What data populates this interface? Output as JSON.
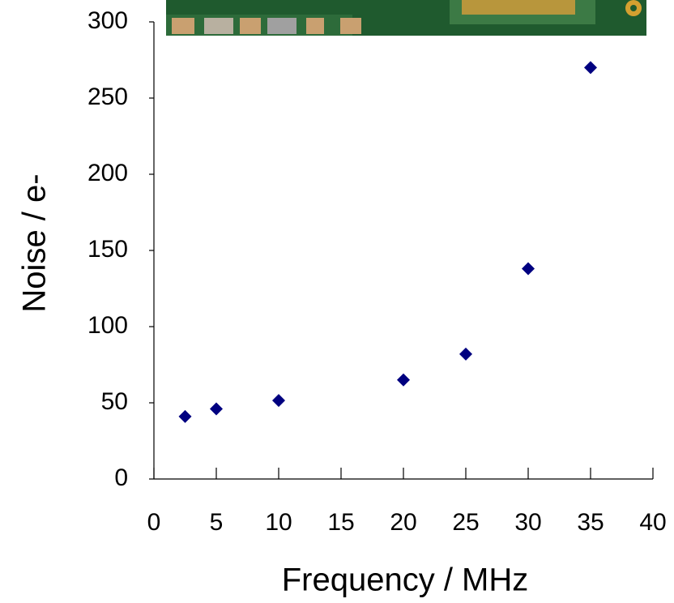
{
  "chart_data": {
    "type": "scatter",
    "xlabel": "Frequency /  MHz",
    "ylabel": "Noise / e-",
    "x": [
      2.5,
      5,
      10,
      20,
      25,
      30,
      35
    ],
    "values": [
      41,
      46,
      51.5,
      65,
      82,
      138,
      270
    ],
    "color": "#000080",
    "marker": "diamond",
    "xlim": [
      0,
      40
    ],
    "ylim": [
      0,
      300
    ],
    "xticks": [
      0,
      5,
      10,
      15,
      20,
      25,
      30,
      35,
      40
    ],
    "yticks": [
      0,
      50,
      100,
      150,
      200,
      250,
      300
    ]
  }
}
